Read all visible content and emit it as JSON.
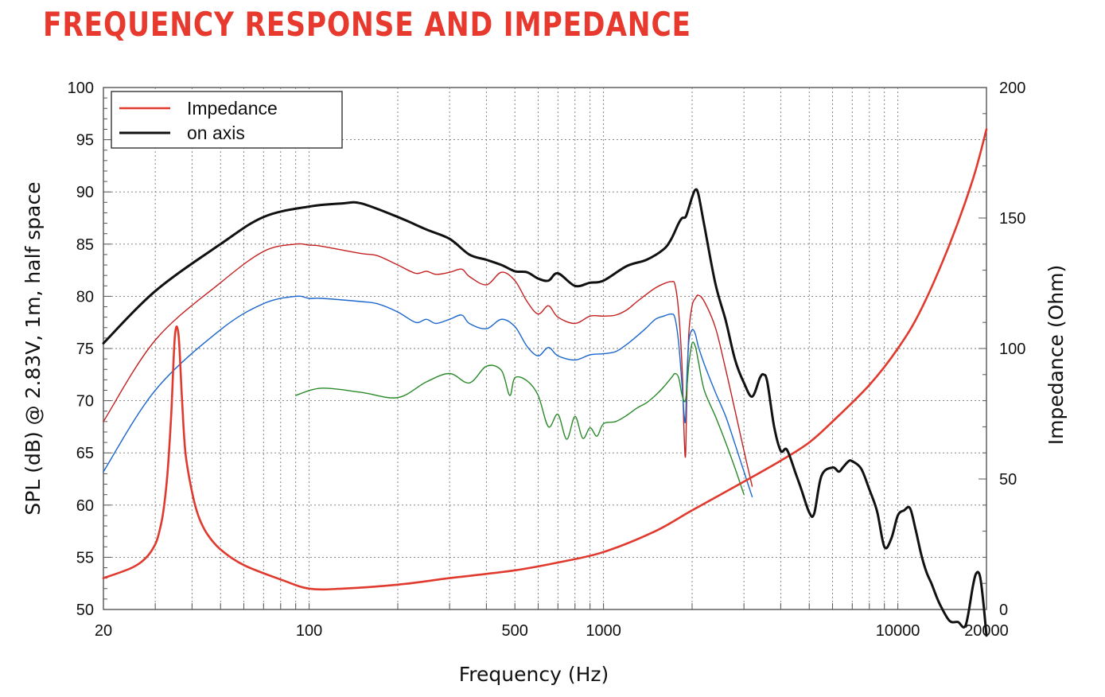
{
  "page": {
    "title": "FREQUENCY RESPONSE AND IMPEDANCE",
    "title_color": "#e8392f"
  },
  "chart_data": {
    "type": "line",
    "title": "FREQUENCY RESPONSE AND IMPEDANCE",
    "xlabel": "Frequency (Hz)",
    "ylabel": "SPL (dB) @ 2.83V, 1m, half space",
    "y2label": "Impedance (Ohm)",
    "xscale": "log",
    "xlim": [
      20,
      20000
    ],
    "ylim": [
      50,
      100
    ],
    "y2lim": [
      0,
      200
    ],
    "grid": true,
    "x_ticks": [
      20,
      100,
      500,
      1000,
      10000,
      20000
    ],
    "x_tick_labels": [
      "20",
      "100",
      "500",
      "1000",
      "10000",
      "20000"
    ],
    "y_ticks": [
      50,
      55,
      60,
      65,
      70,
      75,
      80,
      85,
      90,
      95,
      100
    ],
    "y_tick_labels": [
      "50",
      "55",
      "60",
      "65",
      "70",
      "75",
      "80",
      "85",
      "90",
      "95",
      "100"
    ],
    "y2_ticks": [
      0,
      50,
      100,
      150,
      200
    ],
    "y2_tick_labels": [
      "0",
      "50",
      "100",
      "150",
      "200"
    ],
    "legend_position": "top-left",
    "series": [
      {
        "name": "Impedance",
        "axis": "right",
        "color": "#e03a2e",
        "width": 2.6,
        "x": [
          20,
          25,
          28,
          30,
          31,
          32,
          33,
          34,
          35,
          36,
          37,
          38,
          40,
          42,
          45,
          50,
          60,
          80,
          100,
          130,
          200,
          300,
          500,
          700,
          1000,
          1500,
          2000,
          3000,
          4000,
          5000,
          6000,
          8000,
          10000,
          12000,
          15000,
          18000,
          20000
        ],
        "y": [
          12,
          16,
          20,
          25,
          30,
          38,
          52,
          75,
          105,
          105,
          80,
          60,
          45,
          36,
          29,
          23,
          17,
          11.5,
          8,
          8,
          9.5,
          12,
          15,
          18,
          22,
          30,
          38,
          49,
          57,
          64,
          72,
          86,
          100,
          115,
          140,
          165,
          184
        ]
      },
      {
        "name": "on axis",
        "axis": "left",
        "color": "#111111",
        "width": 3,
        "x": [
          20,
          30,
          50,
          70,
          100,
          130,
          150,
          200,
          250,
          300,
          350,
          400,
          450,
          500,
          550,
          600,
          650,
          700,
          800,
          900,
          1000,
          1200,
          1400,
          1600,
          1700,
          1800,
          1850,
          1900,
          1950,
          2000,
          2050,
          2100,
          2200,
          2400,
          2600,
          2800,
          3000,
          3200,
          3400,
          3500,
          3600,
          3800,
          4000,
          4200,
          4500,
          4700,
          5000,
          5200,
          5500,
          6000,
          6300,
          6500,
          6800,
          7000,
          7500,
          8000,
          8500,
          9000,
          9500,
          10000,
          10500,
          11000,
          11500,
          12000,
          12500,
          13000,
          13500,
          14000,
          15000,
          16000,
          17000,
          18000,
          18500,
          19000,
          19500,
          20000
        ],
        "y": [
          75.5,
          80.5,
          85,
          87.6,
          88.6,
          88.9,
          88.9,
          87.6,
          86.4,
          85.5,
          84,
          83.5,
          83,
          82.4,
          82.3,
          81.7,
          81.5,
          82.2,
          81,
          81.3,
          81.5,
          82.9,
          83.5,
          84.5,
          85.5,
          87,
          87.5,
          87.6,
          88.5,
          89.5,
          90.2,
          89.8,
          86.8,
          81.2,
          77.7,
          73.9,
          71.7,
          70.4,
          72.2,
          72.5,
          71.8,
          67.5,
          65.2,
          65.3,
          63,
          61.5,
          59.3,
          59.2,
          62.8,
          63.6,
          63.2,
          63.6,
          64.2,
          64.2,
          63.5,
          61.5,
          59.4,
          56,
          56.8,
          59,
          59.5,
          59.7,
          57.6,
          55.3,
          53.6,
          52.5,
          51.3,
          50.3,
          48.9,
          48.8,
          48.5,
          52.3,
          53.5,
          53.2,
          50.8,
          47.5
        ]
      },
      {
        "name": "",
        "axis": "left",
        "color": "#c42020",
        "width": 1.4,
        "x": [
          20,
          30,
          50,
          70,
          90,
          100,
          110,
          150,
          170,
          200,
          230,
          250,
          270,
          300,
          330,
          350,
          400,
          450,
          500,
          550,
          600,
          650,
          700,
          800,
          900,
          1000,
          1100,
          1200,
          1300,
          1400,
          1500,
          1600,
          1700,
          1750,
          1800,
          1850,
          1880,
          1900,
          1920,
          1950,
          2000,
          2050,
          2100,
          2200,
          2400,
          2600,
          2800,
          3000,
          3200
        ],
        "y": [
          68,
          75.8,
          81.3,
          84.3,
          85,
          84.9,
          84.8,
          84.1,
          83.9,
          83,
          82.2,
          82.4,
          82.1,
          82.3,
          82.6,
          81.9,
          81.1,
          82.3,
          81.5,
          79.5,
          78.3,
          79.1,
          78,
          77.4,
          78.1,
          78.1,
          78.2,
          78.7,
          79.5,
          80.2,
          80.8,
          81.2,
          81.4,
          81.1,
          78.5,
          73,
          66.5,
          64.8,
          70.5,
          76.5,
          79.1,
          79.8,
          80.1,
          79.5,
          77,
          73,
          69,
          65.2,
          61.8
        ]
      },
      {
        "name": "",
        "axis": "left",
        "color": "#1a66cc",
        "width": 1.4,
        "x": [
          20,
          30,
          50,
          70,
          90,
          100,
          110,
          150,
          170,
          200,
          230,
          250,
          270,
          300,
          330,
          350,
          400,
          450,
          500,
          550,
          600,
          650,
          700,
          800,
          900,
          1000,
          1100,
          1200,
          1300,
          1400,
          1500,
          1600,
          1700,
          1750,
          1800,
          1850,
          1880,
          1900,
          1920,
          1950,
          2000,
          2050,
          2100,
          2200,
          2400,
          2600,
          2800,
          3000,
          3200
        ],
        "y": [
          63.2,
          71,
          76.8,
          79.3,
          80,
          79.8,
          79.8,
          79.5,
          79.3,
          78.5,
          77.5,
          77.8,
          77.4,
          77.8,
          78.2,
          77.4,
          76.9,
          77.8,
          77.1,
          75.2,
          74.3,
          75.1,
          74.3,
          73.9,
          74.4,
          74.5,
          74.7,
          75.4,
          76.2,
          77,
          77.8,
          78.1,
          78.3,
          77.9,
          75.5,
          71.3,
          68.5,
          68.2,
          72.2,
          75.7,
          76.8,
          76.4,
          75.2,
          73.5,
          70.8,
          68.5,
          65.8,
          63.2,
          60.8
        ]
      },
      {
        "name": "",
        "axis": "left",
        "color": "#2a8a2a",
        "width": 1.4,
        "x": [
          90,
          110,
          150,
          200,
          250,
          300,
          350,
          400,
          450,
          480,
          500,
          550,
          600,
          650,
          700,
          750,
          800,
          850,
          900,
          950,
          1000,
          1100,
          1200,
          1300,
          1400,
          1500,
          1600,
          1700,
          1750,
          1800,
          1850,
          1900,
          1950,
          2000,
          2050,
          2100,
          2200,
          2400,
          2600,
          2800,
          3000
        ],
        "y": [
          70.5,
          71.2,
          70.8,
          70.3,
          71.8,
          72.6,
          71.7,
          73.3,
          72.9,
          70.5,
          72.2,
          71.9,
          70.5,
          67.5,
          68.7,
          66.3,
          68.5,
          66.4,
          67.4,
          66.6,
          67.8,
          68,
          68.6,
          69.3,
          69.8,
          70.5,
          71.3,
          72.2,
          72.6,
          72.2,
          70.5,
          70.1,
          73.5,
          75.5,
          75.2,
          73.8,
          71,
          68.5,
          66,
          63.5,
          61
        ]
      }
    ]
  }
}
